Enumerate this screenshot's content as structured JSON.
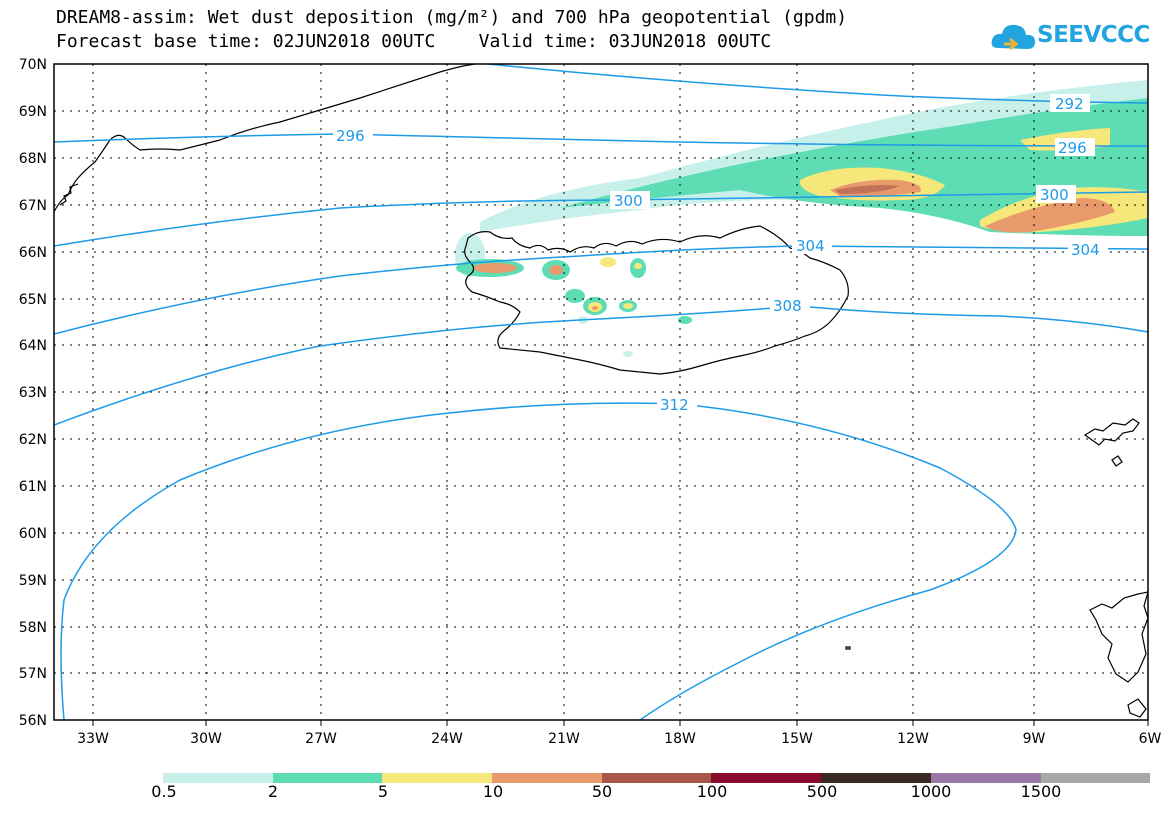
{
  "title": {
    "line1": "DREAM8-assim: Wet dust deposition (mg/m²) and 700 hPa geopotential (gpdm)",
    "line2": "Forecast base time: 02JUN2018 00UTC    Valid time: 03JUN2018 00UTC"
  },
  "logo": {
    "text": "SEEVCCC",
    "icon": "cloud-icon",
    "color": "#22a4e0"
  },
  "map": {
    "lat_labels": [
      "70N",
      "69N",
      "68N",
      "67N",
      "66N",
      "65N",
      "64N",
      "63N",
      "62N",
      "61N",
      "60N",
      "59N",
      "58N",
      "57N",
      "56N"
    ],
    "lon_labels": [
      "33W",
      "30W",
      "27W",
      "24W",
      "21W",
      "18W",
      "15W",
      "12W",
      "9W",
      "6W"
    ],
    "contour_color": "#1e9be8",
    "contour_labels": [
      "292",
      "296",
      "296",
      "300",
      "300",
      "304",
      "304",
      "308",
      "312"
    ]
  },
  "legend": {
    "labels": [
      "0.5",
      "2",
      "5",
      "10",
      "50",
      "100",
      "500",
      "1000",
      "1500"
    ],
    "colors": [
      "#c8f0ea",
      "#5edcb4",
      "#f5e77a",
      "#e99a6c",
      "#a8584a",
      "#8b0b2e",
      "#3b2a22",
      "#9a78a6",
      "#a8a8a8"
    ]
  }
}
